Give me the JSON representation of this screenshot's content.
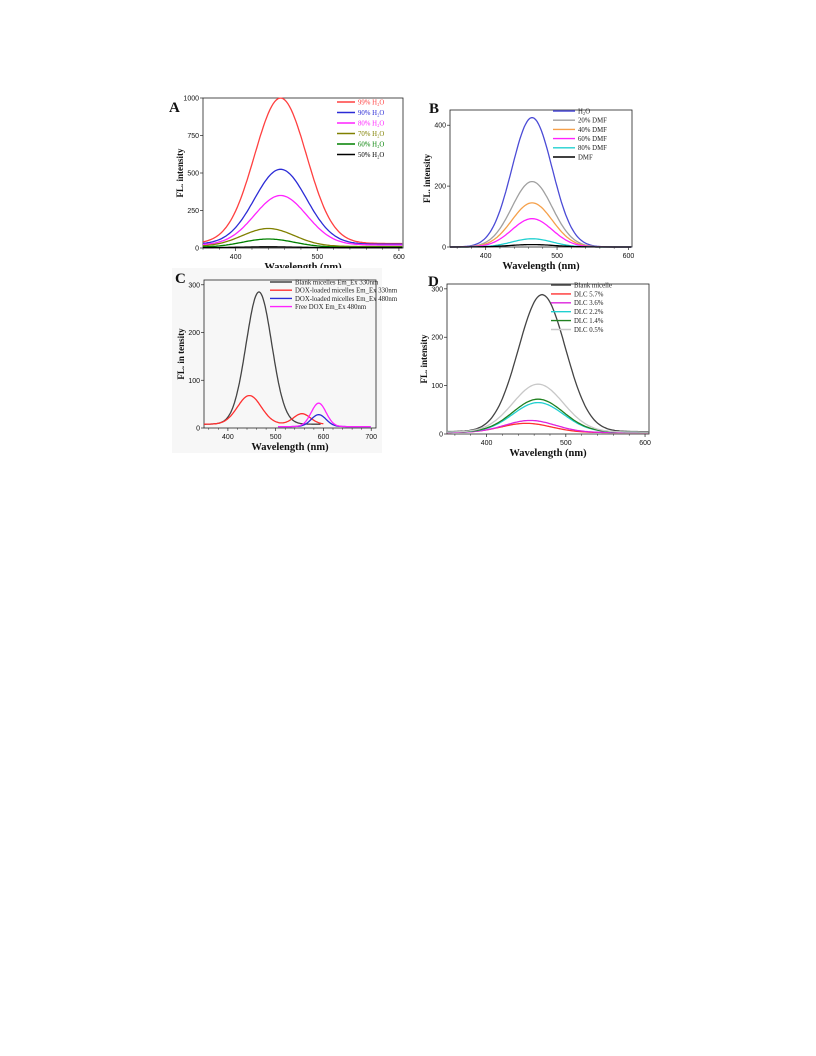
{
  "figure": {
    "panels": [
      "A",
      "B",
      "C",
      "D"
    ]
  },
  "chart_data": [
    {
      "panel": "A",
      "type": "line",
      "xlabel": "Wavelength (nm)",
      "ylabel": "FL. intensity",
      "xlim": [
        360,
        605
      ],
      "ylim": [
        0,
        1000
      ],
      "xticks": [
        400,
        500,
        600
      ],
      "yticks": [
        0,
        250,
        500,
        750,
        1000
      ],
      "legend_position": "top-right",
      "series": [
        {
          "name": "99% H₂O",
          "color": "#ff4040",
          "peak_x": 455,
          "peak_y": 1000,
          "width": 45,
          "base_y": 30
        },
        {
          "name": "90% H₂O",
          "color": "#2b2bd6",
          "peak_x": 455,
          "peak_y": 525,
          "width": 45,
          "base_y": 25
        },
        {
          "name": "80% H₂O",
          "color": "#ff22ff",
          "peak_x": 455,
          "peak_y": 350,
          "width": 45,
          "base_y": 20
        },
        {
          "name": "70% H₂O",
          "color": "#808000",
          "peak_x": 440,
          "peak_y": 130,
          "width": 45,
          "base_y": 10
        },
        {
          "name": "60% H₂O",
          "color": "#008000",
          "peak_x": 440,
          "peak_y": 60,
          "width": 45,
          "base_y": 5
        },
        {
          "name": "50% H₂O",
          "color": "#000000",
          "peak_x": 440,
          "peak_y": 8,
          "width": 50,
          "base_y": 2
        }
      ]
    },
    {
      "panel": "B",
      "type": "line",
      "xlabel": "Wavelength (nm)",
      "ylabel": "FL. intensity",
      "xlim": [
        350,
        605
      ],
      "ylim": [
        0,
        450
      ],
      "xticks": [
        400,
        500,
        600
      ],
      "yticks": [
        0,
        200,
        400
      ],
      "legend_position": "top-right",
      "series": [
        {
          "name": "H₂O",
          "color": "#4b4bd6",
          "peak_x": 465,
          "peak_y": 425,
          "width": 40,
          "base_y": 0
        },
        {
          "name": "20% DMF",
          "color": "#a0a0a0",
          "peak_x": 465,
          "peak_y": 215,
          "width": 40,
          "base_y": 0
        },
        {
          "name": "40% DMF",
          "color": "#f5a04a",
          "peak_x": 465,
          "peak_y": 145,
          "width": 40,
          "base_y": 0
        },
        {
          "name": "60% DMF",
          "color": "#ff22ff",
          "peak_x": 465,
          "peak_y": 93,
          "width": 40,
          "base_y": 0
        },
        {
          "name": "80% DMF",
          "color": "#20d0d0",
          "peak_x": 465,
          "peak_y": 27,
          "width": 40,
          "base_y": 0
        },
        {
          "name": "DMF",
          "color": "#000000",
          "peak_x": 465,
          "peak_y": 8,
          "width": 45,
          "base_y": 0
        }
      ]
    },
    {
      "panel": "C",
      "type": "line",
      "xlabel": "Wavelength (nm)",
      "ylabel": "FL. in tensity",
      "xlim": [
        350,
        710
      ],
      "ylim": [
        0,
        310
      ],
      "xticks": [
        400,
        500,
        600,
        700
      ],
      "yticks": [
        0,
        100,
        200,
        300
      ],
      "legend_position": "top-right",
      "series": [
        {
          "name": "Blank micelles Em_Ex 330nm",
          "color": "#444444",
          "peak_x": 465,
          "peak_y": 285,
          "width": 38,
          "base_y": 8,
          "x_start": 350,
          "x_end": 595
        },
        {
          "name": "DOX-loaded micelles Em_Ex 330nm",
          "color": "#ff3030",
          "peak_x": 445,
          "peak_y": 68,
          "width": 35,
          "base_y": 8,
          "x_start": 350,
          "x_end": 600,
          "shoulder": [
            [
              555,
              22,
              25
            ]
          ]
        },
        {
          "name": "DOX-loaded micelles Em_Ex 480nm",
          "color": "#2b2bd6",
          "peak_x": 590,
          "peak_y": 28,
          "width": 22,
          "base_y": 3,
          "x_start": 505,
          "x_end": 700
        },
        {
          "name": "Free DOX Em_Ex 480nm",
          "color": "#ff22ff",
          "peak_x": 590,
          "peak_y": 52,
          "width": 22,
          "base_y": 3,
          "x_start": 505,
          "x_end": 700
        }
      ]
    },
    {
      "panel": "D",
      "type": "line",
      "xlabel": "Wavelength (nm)",
      "ylabel": "FL. intensity",
      "xlim": [
        350,
        605
      ],
      "ylim": [
        0,
        310
      ],
      "xticks": [
        400,
        500,
        600
      ],
      "yticks": [
        0,
        100,
        200,
        300
      ],
      "legend_position": "top-right",
      "series": [
        {
          "name": "Blank micelle",
          "color": "#444444",
          "peak_x": 470,
          "peak_y": 288,
          "width": 42,
          "base_y": 5
        },
        {
          "name": "DLC 5.7%",
          "color": "#ff3030",
          "peak_x": 450,
          "peak_y": 22,
          "width": 45,
          "base_y": 3
        },
        {
          "name": "DLC 3.6%",
          "color": "#dd22dd",
          "peak_x": 455,
          "peak_y": 28,
          "width": 45,
          "base_y": 3
        },
        {
          "name": "DLC 2.2%",
          "color": "#20d0d0",
          "peak_x": 465,
          "peak_y": 65,
          "width": 45,
          "base_y": 4
        },
        {
          "name": "DLC 1.4%",
          "color": "#208020",
          "peak_x": 465,
          "peak_y": 72,
          "width": 45,
          "base_y": 4
        },
        {
          "name": "DLC 0.5%",
          "color": "#c8c8c8",
          "peak_x": 465,
          "peak_y": 103,
          "width": 45,
          "base_y": 4
        }
      ]
    }
  ]
}
